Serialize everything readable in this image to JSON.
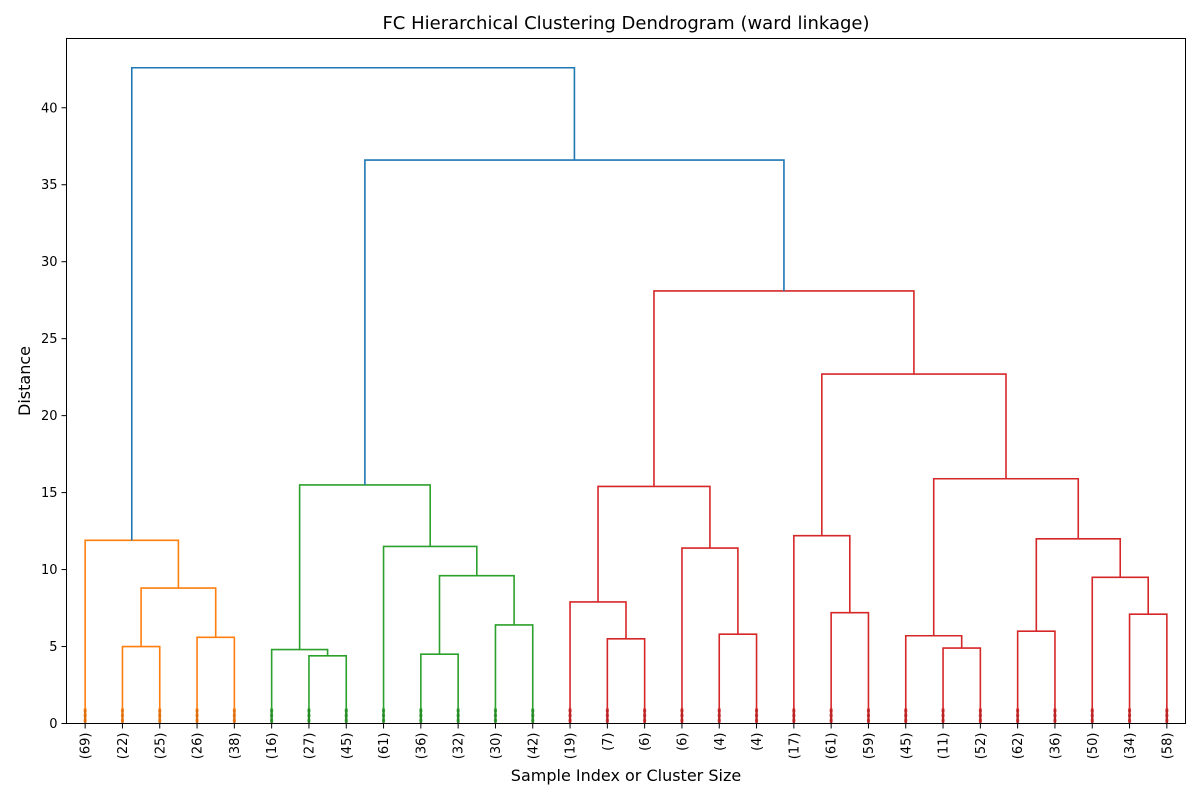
{
  "chart_data": {
    "type": "dendrogram",
    "title": "FC Hierarchical Clustering Dendrogram (ward linkage)",
    "xlabel": "Sample Index or Cluster Size",
    "ylabel": "Distance",
    "ylim": [
      0,
      44.5
    ],
    "yticks": [
      0,
      5,
      10,
      15,
      20,
      25,
      30,
      35,
      40
    ],
    "grid": false,
    "leaves": [
      "(69)",
      "(22)",
      "(25)",
      "(26)",
      "(38)",
      "(16)",
      "(27)",
      "(45)",
      "(61)",
      "(36)",
      "(32)",
      "(30)",
      "(42)",
      "(19)",
      "(7)",
      "(6)",
      "(6)",
      "(4)",
      "(4)",
      "(17)",
      "(61)",
      "(59)",
      "(45)",
      "(11)",
      "(52)",
      "(62)",
      "(36)",
      "(50)",
      "(34)",
      "(58)"
    ],
    "colors": {
      "C0": "#1f77b4",
      "C1": "#ff7f0e",
      "C2": "#2ca02c",
      "C3": "#d62728"
    },
    "merges": [
      {
        "id": "o1",
        "left": 1,
        "right": 2,
        "height": 5.0,
        "color": "C1"
      },
      {
        "id": "o2",
        "left": 3,
        "right": 4,
        "height": 5.6,
        "color": "C1"
      },
      {
        "id": "o3",
        "left": "o1",
        "right": "o2",
        "height": 8.8,
        "color": "C1"
      },
      {
        "id": "o4",
        "left": 0,
        "right": "o3",
        "height": 11.9,
        "color": "C1"
      },
      {
        "id": "g1",
        "left": 6,
        "right": 7,
        "height": 4.4,
        "color": "C2"
      },
      {
        "id": "g2",
        "left": 5,
        "right": "g1",
        "height": 4.8,
        "color": "C2"
      },
      {
        "id": "g3",
        "left": 9,
        "right": 10,
        "height": 4.5,
        "color": "C2"
      },
      {
        "id": "g4",
        "left": 11,
        "right": 12,
        "height": 6.4,
        "color": "C2"
      },
      {
        "id": "g5",
        "left": "g3",
        "right": "g4",
        "height": 9.6,
        "color": "C2"
      },
      {
        "id": "g6",
        "left": 8,
        "right": "g5",
        "height": 11.5,
        "color": "C2"
      },
      {
        "id": "g7",
        "left": "g2",
        "right": "g6",
        "height": 15.5,
        "color": "C2"
      },
      {
        "id": "r1",
        "left": 14,
        "right": 15,
        "height": 5.5,
        "color": "C3"
      },
      {
        "id": "r2",
        "left": 13,
        "right": "r1",
        "height": 7.9,
        "color": "C3"
      },
      {
        "id": "r3",
        "left": 17,
        "right": 18,
        "height": 5.8,
        "color": "C3"
      },
      {
        "id": "r4",
        "left": 16,
        "right": "r3",
        "height": 11.4,
        "color": "C3"
      },
      {
        "id": "r5",
        "left": "r2",
        "right": "r4",
        "height": 15.4,
        "color": "C3"
      },
      {
        "id": "r6",
        "left": 20,
        "right": 21,
        "height": 7.2,
        "color": "C3"
      },
      {
        "id": "r7",
        "left": 19,
        "right": "r6",
        "height": 12.2,
        "color": "C3"
      },
      {
        "id": "r8",
        "left": 23,
        "right": 24,
        "height": 4.9,
        "color": "C3"
      },
      {
        "id": "r9",
        "left": 22,
        "right": "r8",
        "height": 5.7,
        "color": "C3"
      },
      {
        "id": "r10",
        "left": 25,
        "right": 26,
        "height": 6.0,
        "color": "C3"
      },
      {
        "id": "r11",
        "left": 28,
        "right": 29,
        "height": 7.1,
        "color": "C3"
      },
      {
        "id": "r12",
        "left": 27,
        "right": "r11",
        "height": 9.5,
        "color": "C3"
      },
      {
        "id": "r13",
        "left": "r10",
        "right": "r12",
        "height": 12.0,
        "color": "C3"
      },
      {
        "id": "r14",
        "left": "r9",
        "right": "r13",
        "height": 15.9,
        "color": "C3"
      },
      {
        "id": "r15",
        "left": "r7",
        "right": "r14",
        "height": 22.7,
        "color": "C3"
      },
      {
        "id": "r16",
        "left": "r5",
        "right": "r15",
        "height": 28.1,
        "color": "C3"
      },
      {
        "id": "b1",
        "left": "g7",
        "right": "r16",
        "height": 36.6,
        "color": "C0"
      },
      {
        "id": "b2",
        "left": "o4",
        "right": "b1",
        "height": 42.6,
        "color": "C0"
      }
    ]
  }
}
